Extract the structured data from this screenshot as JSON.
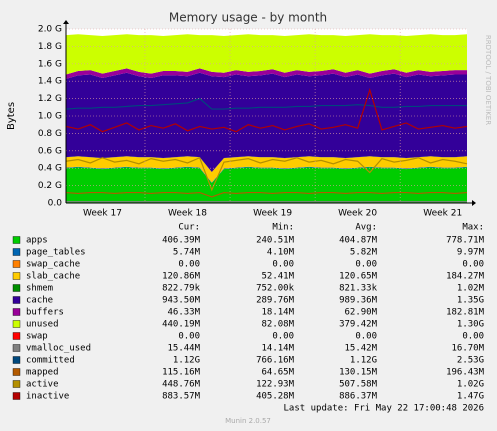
{
  "chart_data": {
    "type": "area",
    "title": "Memory usage - by month",
    "y_label": "Bytes",
    "watermark": "RRDTOOL / TOBI OETIKER",
    "categories": [
      null,
      null,
      null,
      "Week 17",
      null,
      null,
      null,
      null,
      null,
      null,
      "Week 18",
      null,
      null,
      null,
      null,
      null,
      null,
      "Week 19",
      null,
      null,
      null,
      null,
      null,
      null,
      "Week 20",
      null,
      null,
      null,
      null,
      null,
      null,
      "Week 21",
      null,
      null
    ],
    "ylim": [
      0,
      2.0
    ],
    "yticks": [
      {
        "value": 0,
        "label": "0.0"
      },
      {
        "value": 0.2,
        "label": "0.2 G"
      },
      {
        "value": 0.4,
        "label": "0.4 G"
      },
      {
        "value": 0.6,
        "label": "0.6 G"
      },
      {
        "value": 0.8,
        "label": "0.8 G"
      },
      {
        "value": 1.0,
        "label": "1.0 G"
      },
      {
        "value": 1.2,
        "label": "1.2 G"
      },
      {
        "value": 1.4,
        "label": "1.4 G"
      },
      {
        "value": 1.6,
        "label": "1.6 G"
      },
      {
        "value": 1.8,
        "label": "1.8 G"
      },
      {
        "value": 2.0,
        "label": "2.0 G"
      }
    ],
    "grid": true,
    "legend_columns": [
      "Cur:",
      "Min:",
      "Avg:",
      "Max:"
    ],
    "series": [
      {
        "name": "apps",
        "color": "#00cc00",
        "kind": "area",
        "stats": [
          "406.39M",
          "240.51M",
          "404.87M",
          "778.71M"
        ],
        "values": [
          0.4,
          0.41,
          0.4,
          0.39,
          0.4,
          0.41,
          0.4,
          0.4,
          0.39,
          0.4,
          0.41,
          0.4,
          0.23,
          0.39,
          0.4,
          0.41,
          0.4,
          0.4,
          0.39,
          0.4,
          0.41,
          0.4,
          0.4,
          0.39,
          0.4,
          0.41,
          0.4,
          0.4,
          0.39,
          0.4,
          0.41,
          0.4,
          0.4,
          0.41
        ]
      },
      {
        "name": "page_tables",
        "color": "#0066b3",
        "kind": "area",
        "stats": [
          "5.74M",
          "4.10M",
          "5.82M",
          "9.97M"
        ],
        "values": [
          0.006,
          0.006,
          0.006,
          0.006,
          0.006,
          0.006,
          0.006,
          0.006,
          0.006,
          0.006,
          0.006,
          0.006,
          0.006,
          0.006,
          0.006,
          0.006,
          0.006,
          0.006,
          0.006,
          0.006,
          0.006,
          0.006,
          0.006,
          0.006,
          0.006,
          0.006,
          0.006,
          0.006,
          0.006,
          0.006,
          0.006,
          0.006,
          0.006,
          0.006
        ]
      },
      {
        "name": "swap_cache",
        "color": "#ff8000",
        "kind": "area",
        "stats": [
          "0.00",
          "0.00",
          "0.00",
          "0.00"
        ],
        "values": [
          0,
          0,
          0,
          0,
          0,
          0,
          0,
          0,
          0,
          0,
          0,
          0,
          0,
          0,
          0,
          0,
          0,
          0,
          0,
          0,
          0,
          0,
          0,
          0,
          0,
          0,
          0,
          0,
          0,
          0,
          0,
          0,
          0,
          0
        ]
      },
      {
        "name": "slab_cache",
        "color": "#ffcc00",
        "kind": "area",
        "stats": [
          "120.86M",
          "52.41M",
          "120.65M",
          "184.27M"
        ],
        "values": [
          0.12,
          0.12,
          0.12,
          0.12,
          0.12,
          0.12,
          0.12,
          0.12,
          0.12,
          0.12,
          0.12,
          0.12,
          0.12,
          0.12,
          0.12,
          0.12,
          0.12,
          0.12,
          0.12,
          0.12,
          0.12,
          0.12,
          0.12,
          0.12,
          0.12,
          0.12,
          0.12,
          0.12,
          0.12,
          0.12,
          0.12,
          0.12,
          0.12,
          0.12
        ]
      },
      {
        "name": "shmem",
        "color": "#008f00",
        "kind": "area",
        "stats": [
          "822.79k",
          "752.00k",
          "821.33k",
          "1.02M"
        ],
        "values": [
          0.001,
          0.001,
          0.001,
          0.001,
          0.001,
          0.001,
          0.001,
          0.001,
          0.001,
          0.001,
          0.001,
          0.001,
          0.001,
          0.001,
          0.001,
          0.001,
          0.001,
          0.001,
          0.001,
          0.001,
          0.001,
          0.001,
          0.001,
          0.001,
          0.001,
          0.001,
          0.001,
          0.001,
          0.001,
          0.001,
          0.001,
          0.001,
          0.001,
          0.001
        ]
      },
      {
        "name": "cache",
        "color": "#330099",
        "kind": "area",
        "stats": [
          "943.50M",
          "289.76M",
          "989.36M",
          "1.35G"
        ],
        "values": [
          0.9,
          0.93,
          0.95,
          0.92,
          0.94,
          0.96,
          0.93,
          0.91,
          0.95,
          0.94,
          0.92,
          0.97,
          1.1,
          0.93,
          0.95,
          0.92,
          0.94,
          0.96,
          0.93,
          0.95,
          0.92,
          0.94,
          0.96,
          0.93,
          0.95,
          0.9,
          0.94,
          0.96,
          0.93,
          0.95,
          0.92,
          0.94,
          0.95,
          0.94
        ]
      },
      {
        "name": "buffers",
        "color": "#990099",
        "kind": "area",
        "stats": [
          "46.33M",
          "18.14M",
          "62.90M",
          "182.81M"
        ],
        "values": [
          0.05,
          0.05,
          0.05,
          0.05,
          0.05,
          0.05,
          0.05,
          0.05,
          0.05,
          0.05,
          0.05,
          0.05,
          0.05,
          0.05,
          0.05,
          0.05,
          0.05,
          0.05,
          0.05,
          0.05,
          0.05,
          0.05,
          0.05,
          0.05,
          0.05,
          0.05,
          0.05,
          0.05,
          0.05,
          0.05,
          0.05,
          0.05,
          0.05,
          0.05
        ]
      },
      {
        "name": "unused",
        "color": "#ccff00",
        "kind": "area",
        "stats": [
          "440.19M",
          "82.08M",
          "379.42M",
          "1.30G"
        ],
        "values": [
          0.453,
          0.423,
          0.403,
          0.433,
          0.413,
          0.393,
          0.423,
          0.443,
          0.403,
          0.413,
          0.433,
          0.383,
          0.423,
          0.423,
          0.403,
          0.433,
          0.413,
          0.393,
          0.423,
          0.403,
          0.433,
          0.413,
          0.393,
          0.423,
          0.403,
          0.453,
          0.413,
          0.393,
          0.423,
          0.403,
          0.433,
          0.413,
          0.403,
          0.413
        ]
      },
      {
        "name": "swap",
        "color": "#ff0000",
        "kind": "area",
        "stats": [
          "0.00",
          "0.00",
          "0.00",
          "0.00"
        ],
        "values": [
          0,
          0,
          0,
          0,
          0,
          0,
          0,
          0,
          0,
          0,
          0,
          0,
          0,
          0,
          0,
          0,
          0,
          0,
          0,
          0,
          0,
          0,
          0,
          0,
          0,
          0,
          0,
          0,
          0,
          0,
          0,
          0,
          0,
          0
        ]
      },
      {
        "name": "vmalloc_used",
        "color": "#808080",
        "kind": "line",
        "stats": [
          "15.44M",
          "14.14M",
          "15.42M",
          "16.70M"
        ],
        "values": [
          0.015,
          0.015,
          0.015,
          0.015,
          0.015,
          0.015,
          0.015,
          0.015,
          0.015,
          0.015,
          0.015,
          0.015,
          0.015,
          0.015,
          0.015,
          0.015,
          0.015,
          0.015,
          0.015,
          0.015,
          0.015,
          0.015,
          0.015,
          0.015,
          0.015,
          0.015,
          0.015,
          0.015,
          0.015,
          0.015,
          0.015,
          0.015,
          0.015,
          0.015
        ]
      },
      {
        "name": "committed",
        "color": "#00487d",
        "kind": "line",
        "stats": [
          "1.12G",
          "766.16M",
          "1.12G",
          "2.53G"
        ],
        "values": [
          1.08,
          1.09,
          1.09,
          1.1,
          1.1,
          1.11,
          1.12,
          1.12,
          1.13,
          1.14,
          1.15,
          1.2,
          1.08,
          1.08,
          1.09,
          1.09,
          1.1,
          1.1,
          1.1,
          1.11,
          1.11,
          1.12,
          1.12,
          1.12,
          1.13,
          1.12,
          1.1,
          1.1,
          1.11,
          1.11,
          1.12,
          1.12,
          1.12,
          1.12
        ]
      },
      {
        "name": "mapped",
        "color": "#b35a00",
        "kind": "line",
        "stats": [
          "115.16M",
          "64.65M",
          "130.15M",
          "196.43M"
        ],
        "values": [
          0.12,
          0.11,
          0.12,
          0.12,
          0.11,
          0.12,
          0.12,
          0.11,
          0.12,
          0.12,
          0.11,
          0.12,
          0.07,
          0.12,
          0.11,
          0.12,
          0.12,
          0.11,
          0.12,
          0.12,
          0.11,
          0.12,
          0.12,
          0.11,
          0.12,
          0.12,
          0.11,
          0.12,
          0.12,
          0.11,
          0.12,
          0.12,
          0.11,
          0.12
        ]
      },
      {
        "name": "active",
        "color": "#b38f00",
        "kind": "line",
        "stats": [
          "448.76M",
          "122.93M",
          "507.58M",
          "1.02G"
        ],
        "values": [
          0.48,
          0.5,
          0.46,
          0.52,
          0.47,
          0.49,
          0.45,
          0.51,
          0.48,
          0.5,
          0.46,
          0.52,
          0.15,
          0.47,
          0.49,
          0.51,
          0.46,
          0.5,
          0.48,
          0.52,
          0.47,
          0.49,
          0.45,
          0.5,
          0.48,
          0.35,
          0.51,
          0.47,
          0.49,
          0.52,
          0.46,
          0.5,
          0.48,
          0.45
        ]
      },
      {
        "name": "inactive",
        "color": "#b30000",
        "kind": "line",
        "stats": [
          "883.57M",
          "405.28M",
          "886.37M",
          "1.47G"
        ],
        "values": [
          0.88,
          0.85,
          0.9,
          0.82,
          0.87,
          0.92,
          0.84,
          0.89,
          0.86,
          0.91,
          0.83,
          0.88,
          0.85,
          0.87,
          0.82,
          0.9,
          0.86,
          0.89,
          0.84,
          0.88,
          0.91,
          0.85,
          0.87,
          0.9,
          0.86,
          1.3,
          0.84,
          0.88,
          0.92,
          0.85,
          0.87,
          0.89,
          0.86,
          0.88
        ]
      }
    ],
    "last_update": "Last update: Fri May 22 17:00:48 2026",
    "footer": "Munin 2.0.57"
  }
}
